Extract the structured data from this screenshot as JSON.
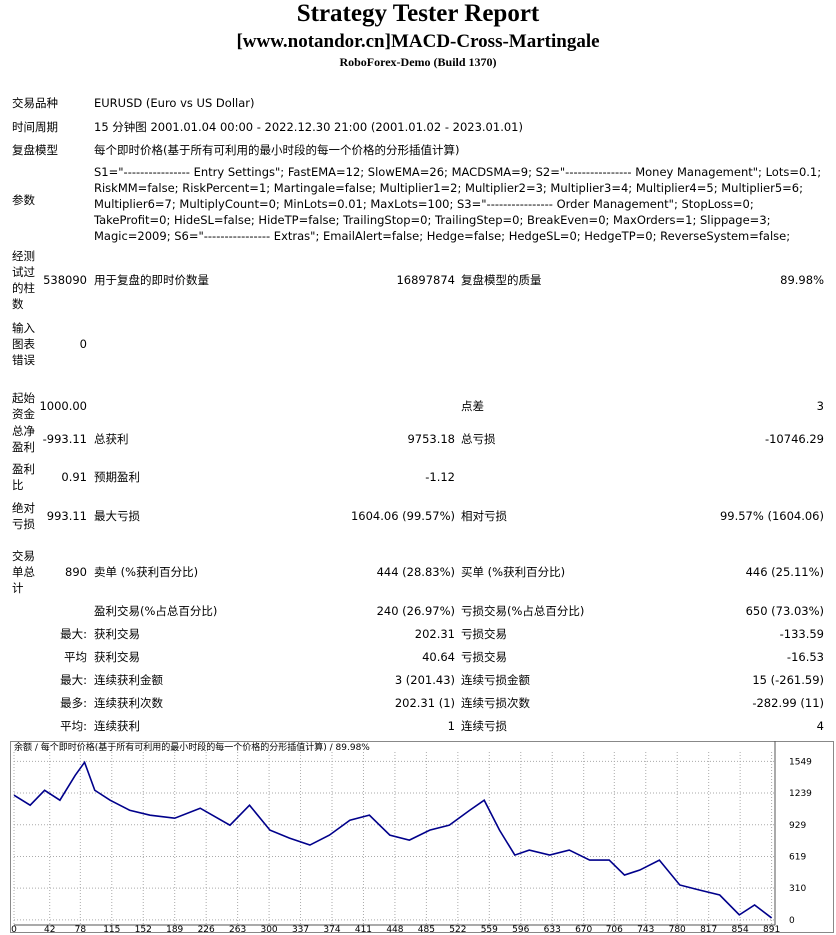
{
  "header": {
    "title": "Strategy Tester Report",
    "subtitle": "[www.notandor.cn]MACD-Cross-Martingale",
    "server": "RoboForex-Demo (Build 1370)"
  },
  "report": {
    "rows": [
      {
        "label": "交易品种",
        "text": "EURUSD (Euro vs US Dollar)"
      },
      {
        "label": "时间周期",
        "text": "15 分钟图 2001.01.04 00:00 - 2022.12.30 21:00 (2001.01.02 - 2023.01.01)"
      },
      {
        "label": "复盘模型",
        "text": "每个即时价格(基于所有可利用的最小时段的每一个价格的分形插值计算)"
      },
      {
        "label": "参数",
        "text": "S1=\"---------------- Entry Settings\"; FastEMA=12; SlowEMA=26; MACDSMA=9; S2=\"---------------- Money Management\"; Lots=0.1; RiskMM=false; RiskPercent=1; Martingale=false; Multiplier1=2; Multiplier2=3; Multiplier3=4; Multiplier4=5; Multiplier5=6; Multiplier6=7; MultiplyCount=0; MinLots=0.01; MaxLots=100; S3=\"---------------- Order Management\"; StopLoss=0; TakeProfit=0; HideSL=false; HideTP=false; TrailingStop=0; TrailingStep=0; BreakEven=0; MaxOrders=1; Slippage=3; Magic=2009; S6=\"---------------- Extras\"; EmailAlert=false; Hedge=false; HedgeSL=0; HedgeTP=0; ReverseSystem=false;"
      },
      {
        "label": "经测试过的柱数",
        "value": "538090",
        "label2": "用于复盘的即时价数量",
        "value2": "16897874",
        "label3": "复盘模型的质量",
        "value3": "89.98%"
      },
      {
        "label": "输入图表错误",
        "value": "0"
      },
      {
        "label": "起始资金",
        "value": "1000.00",
        "label3": "点差",
        "value3": "3"
      },
      {
        "label": "总净盈利",
        "value": "-993.11",
        "label2": "总获利",
        "value2": "9753.18",
        "label3": "总亏损",
        "value3": "-10746.29"
      },
      {
        "label": "盈利比",
        "value": "0.91",
        "label2": "预期盈利",
        "value2": "-1.12"
      },
      {
        "label": "绝对亏损",
        "value": "993.11",
        "label2": "最大亏损",
        "value2": "1604.06 (99.57%)",
        "label3": "相对亏损",
        "value3": "99.57% (1604.06)"
      },
      {
        "label": "交易单总计",
        "value": "890",
        "label2": "卖单 (%获利百分比)",
        "value2": "444 (28.83%)",
        "label3": "买单 (%获利百分比)",
        "value3": "446 (25.11%)"
      },
      {
        "label2": "盈利交易(%占总百分比)",
        "value2": "240 (26.97%)",
        "label3": "亏损交易(%占总百分比)",
        "value3": "650 (73.03%)"
      },
      {
        "value": "最大:",
        "label2": "获利交易",
        "value2": "202.31",
        "label3": "亏损交易",
        "value3": "-133.59"
      },
      {
        "value": "平均",
        "label2": "获利交易",
        "value2": "40.64",
        "label3": "亏损交易",
        "value3": "-16.53"
      },
      {
        "value": "最大:",
        "label2": "连续获利金额",
        "value2": "3 (201.43)",
        "label3": "连续亏损金额",
        "value3": "15 (-261.59)"
      },
      {
        "value": "最多:",
        "label2": "连续获利次数",
        "value2": "202.31 (1)",
        "label3": "连续亏损次数",
        "value3": "-282.99 (11)"
      },
      {
        "value": "平均:",
        "label2": "连续获利",
        "value2": "1",
        "label3": "连续亏损",
        "value3": "4"
      }
    ]
  },
  "chart": {
    "type": "line",
    "title": "余额 / 每个即时价格(基于所有可利用的最小时段的每一个价格的分形插值计算) / 89.98%",
    "x": [
      0,
      19,
      36,
      54,
      72,
      83,
      95,
      113,
      136,
      160,
      189,
      219,
      254,
      277,
      301,
      324,
      348,
      371,
      395,
      418,
      442,
      465,
      489,
      512,
      536,
      553,
      571,
      589,
      606,
      630,
      653,
      677,
      700,
      718,
      736,
      759,
      783,
      806,
      830,
      853,
      871,
      891
    ],
    "values": [
      1218,
      1120,
      1266,
      1169,
      1412,
      1539,
      1266,
      1169,
      1071,
      1023,
      993,
      1091,
      925,
      1120,
      877,
      799,
      731,
      828,
      974,
      1023,
      828,
      779,
      877,
      925,
      1071,
      1169,
      877,
      633,
      682,
      633,
      682,
      584,
      584,
      438,
      487,
      584,
      341,
      292,
      243,
      49,
      146,
      19
    ],
    "color": "#00008b",
    "xlim": [
      0,
      895
    ],
    "ylim": [
      -50,
      1640
    ],
    "xticks": [
      0,
      42,
      78,
      115,
      152,
      189,
      226,
      263,
      300,
      337,
      374,
      411,
      448,
      485,
      522,
      559,
      596,
      633,
      670,
      706,
      743,
      780,
      817,
      854,
      891
    ],
    "yticks": [
      0,
      310,
      619,
      929,
      1239,
      1549
    ],
    "grid": true
  }
}
